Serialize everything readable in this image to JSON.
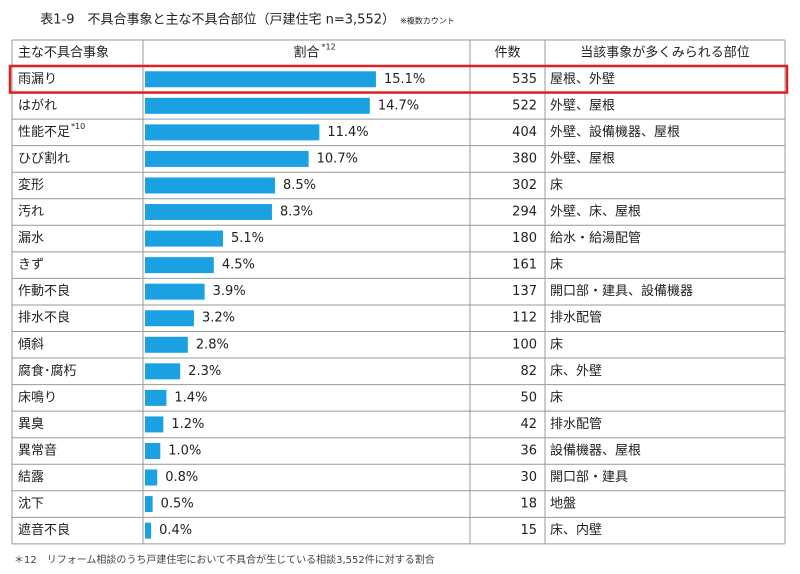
{
  "title": "表1-9　不具合事象と主な不具合部位（戸建住宅 n=3,552）",
  "title_note": "※複数カウント",
  "footnote": "＊12　リフォーム相談のうち戸建住宅において不具合が生じている相談3,552件に対する割合",
  "chart_data": {
    "type": "bar",
    "orientation": "horizontal",
    "color": "#1ba1e2",
    "highlight_color": "#e02020",
    "highlight_index": 0,
    "xlim": [
      0,
      17
    ],
    "column_headers": [
      "主な不具合事象",
      "割合",
      "件数",
      "当該事象が多くみられる部位"
    ],
    "header_note": "*12",
    "categories": [
      "雨漏り",
      "はがれ",
      "性能不足",
      "ひび割れ",
      "変形",
      "汚れ",
      "漏水",
      "きず",
      "作動不良",
      "排水不良",
      "傾斜",
      "腐食･腐朽",
      "床鳴り",
      "異臭",
      "異常音",
      "結露",
      "沈下",
      "遮音不良"
    ],
    "category_notes": [
      null,
      null,
      "*10",
      null,
      null,
      null,
      null,
      null,
      null,
      null,
      null,
      null,
      null,
      null,
      null,
      null,
      null,
      null
    ],
    "values": [
      15.1,
      14.7,
      11.4,
      10.7,
      8.5,
      8.3,
      5.1,
      4.5,
      3.9,
      3.2,
      2.8,
      2.3,
      1.4,
      1.2,
      1.0,
      0.8,
      0.5,
      0.4
    ],
    "value_labels": [
      "15.1%",
      "14.7%",
      "11.4%",
      "10.7%",
      "8.5%",
      "8.3%",
      "5.1%",
      "4.5%",
      "3.9%",
      "3.2%",
      "2.8%",
      "2.3%",
      "1.4%",
      "1.2%",
      "1.0%",
      "0.8%",
      "0.5%",
      "0.4%"
    ],
    "counts": [
      535,
      522,
      404,
      380,
      302,
      294,
      180,
      161,
      137,
      112,
      100,
      82,
      50,
      42,
      36,
      30,
      18,
      15
    ],
    "parts": [
      "屋根、外壁",
      "外壁、屋根",
      "外壁、設備機器、屋根",
      "外壁、屋根",
      "床",
      "外壁、床、屋根",
      "給水・給湯配管",
      "床",
      "開口部・建具、設備機器",
      "排水配管",
      "床",
      "床、外壁",
      "床",
      "排水配管",
      "設備機器、屋根",
      "開口部・建具",
      "地盤",
      "床、内壁"
    ]
  }
}
